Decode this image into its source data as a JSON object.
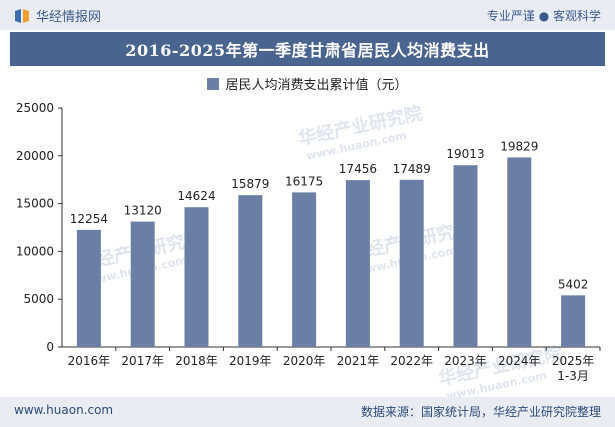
{
  "header": {
    "brand": "华经情报网",
    "tagline": "专业严谨 ● 客观科学"
  },
  "watermark": {
    "text_cn": "华经产业研究院",
    "text_en": "www.huaon.com"
  },
  "footer": {
    "website": "www.huaon.com",
    "source": "数据来源：国家统计局，华经产业研究院整理"
  },
  "colors": {
    "bar": "#6b7fa6",
    "title_bg": "#4a6490",
    "header_bg": "#e9edf3"
  },
  "chart_data": {
    "type": "bar",
    "title": "2016-2025年第一季度甘肃省居民人均消费支出",
    "categories": [
      "2016年",
      "2017年",
      "2018年",
      "2019年",
      "2020年",
      "2021年",
      "2022年",
      "2023年",
      "2024年",
      "2025年\n1-3月"
    ],
    "series": [
      {
        "name": "居民人均消费支出累计值（元）",
        "values": [
          12254,
          13120,
          14624,
          15879,
          16175,
          17456,
          17489,
          19013,
          19829,
          5402
        ]
      }
    ],
    "ylim": [
      0,
      25000
    ],
    "yticks": [
      0,
      5000,
      10000,
      15000,
      20000,
      25000
    ],
    "xlabel": "",
    "ylabel": "",
    "grid": false,
    "legend": "top-center"
  }
}
